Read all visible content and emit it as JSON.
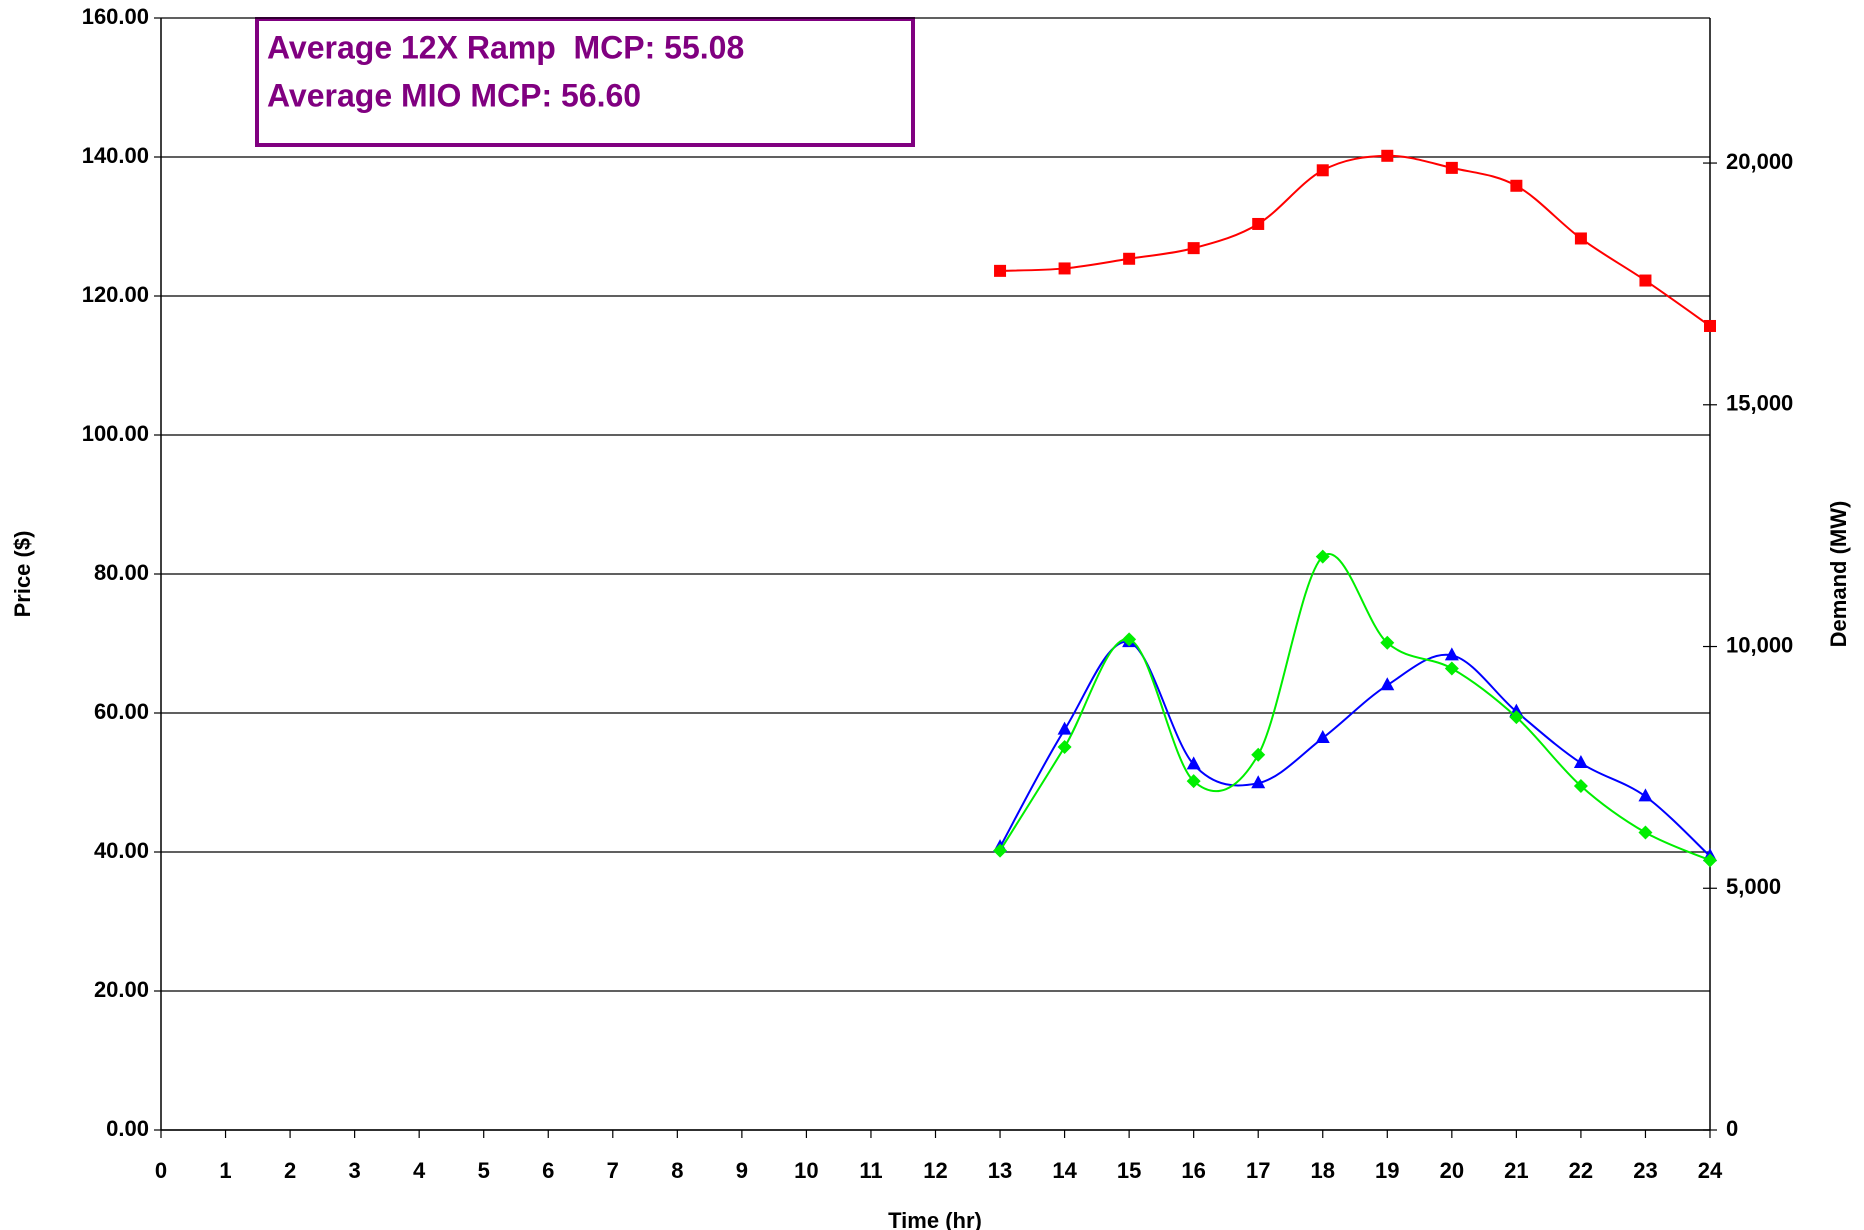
{
  "chart_data": {
    "type": "line",
    "annotations": [
      "Average 12X Ramp  MCP: 55.08",
      "Average MIO MCP: 56.60"
    ],
    "x_label": "Time (hr)",
    "y_label": "Price ($)",
    "y2_label": "Demand (MW)",
    "x": [
      13,
      14,
      15,
      16,
      17,
      18,
      19,
      20,
      21,
      22,
      23,
      24
    ],
    "series": [
      {
        "color": "#ff0000",
        "marker": "square",
        "axis": "y2",
        "values": [
          17770,
          17820,
          18020,
          18240,
          18740,
          19850,
          20150,
          19900,
          19530,
          18440,
          17570,
          16630
        ]
      },
      {
        "color": "#0000ff",
        "marker": "triangle",
        "values": [
          40.7,
          57.6,
          70.2,
          52.6,
          49.9,
          56.4,
          64.0,
          68.3,
          60.2,
          52.8,
          48.0,
          39.4
        ]
      },
      {
        "color": "#00ee00",
        "marker": "diamond",
        "values": [
          40.2,
          55.1,
          70.6,
          50.2,
          54.0,
          82.5,
          70.1,
          66.4,
          59.4,
          49.5,
          42.8,
          38.8
        ]
      }
    ],
    "xlim": [
      0,
      24
    ],
    "xticks": [
      0,
      1,
      2,
      3,
      4,
      5,
      6,
      7,
      8,
      9,
      10,
      11,
      12,
      13,
      14,
      15,
      16,
      17,
      18,
      19,
      20,
      21,
      22,
      23,
      24
    ],
    "ylim": [
      0,
      160
    ],
    "yticks": [
      {
        "value": 0,
        "label": "0.00"
      },
      {
        "value": 20,
        "label": "20.00"
      },
      {
        "value": 40,
        "label": "40.00"
      },
      {
        "value": 60,
        "label": "60.00"
      },
      {
        "value": 80,
        "label": "80.00"
      },
      {
        "value": 100,
        "label": "100.00"
      },
      {
        "value": 120,
        "label": "120.00"
      },
      {
        "value": 140,
        "label": "140.00"
      },
      {
        "value": 160,
        "label": "160.00"
      }
    ],
    "y2lim": [
      0,
      23000
    ],
    "y2ticks": [
      0,
      {
        "value": 5000,
        "label": "5,000"
      },
      {
        "value": 10000,
        "label": "10,000"
      },
      {
        "value": 15000,
        "label": "15,000"
      },
      {
        "value": 20000,
        "label": "20,000"
      }
    ],
    "grid": true,
    "smooth": true
  }
}
